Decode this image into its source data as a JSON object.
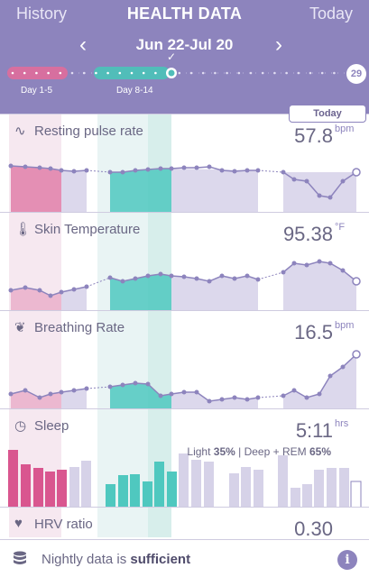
{
  "header": {
    "history_label": "History",
    "title": "HEALTH DATA",
    "today_label": "Today",
    "date_range": "Jun 22-Jul 20",
    "prev_icon": "chevron-left-icon",
    "next_icon": "chevron-right-icon",
    "check_icon": "checkmark-icon",
    "period_labels": [
      "Day 1-5",
      "Day 8-14"
    ],
    "total_days": "29"
  },
  "today_tab": "Today",
  "colors": {
    "header_bg": "#8d84bd",
    "pink": "#e07fa9",
    "teal": "#4fc8bf",
    "lavender": "#d9d6ea",
    "line": "#8d84bd"
  },
  "sections": [
    {
      "label": "Resting pulse rate",
      "value": "57.8",
      "unit": "bpm",
      "icon": "pulse-wave-icon"
    },
    {
      "label": "Skin Temperature",
      "value": "95.38",
      "unit": "°F",
      "icon": "thermometer-icon"
    },
    {
      "label": "Breathing Rate",
      "value": "16.5",
      "unit": "bpm",
      "icon": "lungs-icon"
    },
    {
      "label": "Sleep",
      "value": "5:11",
      "unit": "hrs",
      "icon": "sleep-clock-icon",
      "detail": {
        "light_label": "Light",
        "light": "35%",
        "sep": "| Deep + REM",
        "deep": "65%"
      }
    },
    {
      "label": "HRV ratio",
      "value": "0.30",
      "unit": "",
      "icon": "heart-icon"
    }
  ],
  "footer": {
    "text_prefix": "Nightly data is",
    "text_bold": "sufficient",
    "icon": "database-icon",
    "info_icon": "info-icon",
    "info_label": "i"
  }
}
